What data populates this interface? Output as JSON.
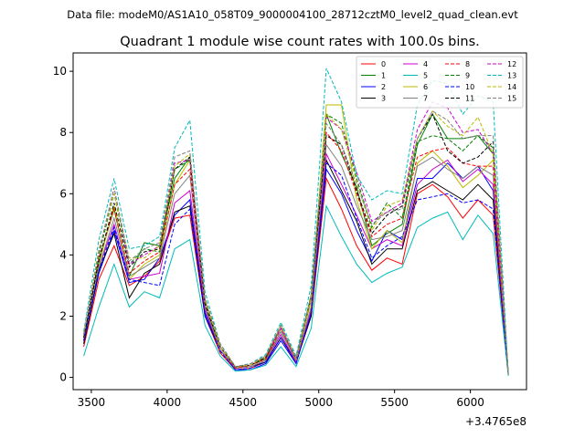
{
  "suptitle": "Data file: modeM0/AS1A10_058T09_9000004100_28712cztM0_level2_quad_clean.evt",
  "chart_data": {
    "type": "line",
    "title": "Quadrant 1 module wise count rates with 100.0s bins.",
    "xlabel": "",
    "ylabel": "",
    "x_offset_label": "+3.4765e8",
    "x_offset": 347650000,
    "xlim": [
      3380,
      6370
    ],
    "ylim": [
      -0.4,
      10.6
    ],
    "xticks": [
      3500,
      4000,
      4500,
      5000,
      5500,
      6000
    ],
    "yticks": [
      0,
      2,
      4,
      6,
      8,
      10
    ],
    "grid": false,
    "legend_position": "top-right",
    "x": [
      3450,
      3550,
      3650,
      3750,
      3850,
      3950,
      4050,
      4150,
      4250,
      4350,
      4450,
      4550,
      4650,
      4750,
      4850,
      4950,
      5050,
      5150,
      5250,
      5350,
      5450,
      5550,
      5650,
      5750,
      5850,
      5950,
      6050,
      6150,
      6250
    ],
    "series": [
      {
        "name": "0",
        "color": "#ff0000",
        "dash": "solid",
        "values": [
          1.0,
          3.2,
          4.3,
          3.0,
          3.3,
          3.8,
          5.2,
          5.3,
          2.0,
          0.8,
          0.25,
          0.3,
          0.5,
          1.3,
          0.5,
          2.0,
          6.5,
          5.5,
          4.3,
          3.5,
          3.9,
          3.7,
          6.0,
          6.3,
          5.9,
          5.2,
          5.8,
          5.3,
          0.1
        ]
      },
      {
        "name": "1",
        "color": "#008000",
        "dash": "solid",
        "values": [
          1.2,
          3.8,
          5.5,
          3.3,
          4.4,
          4.3,
          6.5,
          7.2,
          2.3,
          1.0,
          0.3,
          0.4,
          0.6,
          1.5,
          0.6,
          2.5,
          8.6,
          7.3,
          6.2,
          4.3,
          4.7,
          5.0,
          7.6,
          8.6,
          7.8,
          7.8,
          7.9,
          7.3,
          0.1
        ]
      },
      {
        "name": "2",
        "color": "#0000ff",
        "dash": "solid",
        "values": [
          1.1,
          3.4,
          4.8,
          3.1,
          3.2,
          3.9,
          5.3,
          5.8,
          2.1,
          0.9,
          0.25,
          0.25,
          0.45,
          1.2,
          0.45,
          2.1,
          6.8,
          6.0,
          4.8,
          3.8,
          4.8,
          4.5,
          6.5,
          6.5,
          7.0,
          6.5,
          6.9,
          6.1,
          0.1
        ]
      },
      {
        "name": "3",
        "color": "#000000",
        "dash": "solid",
        "values": [
          1.1,
          3.5,
          4.7,
          2.6,
          3.4,
          3.7,
          5.4,
          5.6,
          2.0,
          0.9,
          0.3,
          0.35,
          0.5,
          1.3,
          0.5,
          2.0,
          7.1,
          6.1,
          5.1,
          3.7,
          4.2,
          4.2,
          6.1,
          6.4,
          6.1,
          5.8,
          6.3,
          5.8,
          0.1
        ]
      },
      {
        "name": "4",
        "color": "#cc00cc",
        "dash": "solid",
        "values": [
          1.2,
          3.6,
          5.0,
          3.2,
          3.3,
          3.4,
          5.7,
          6.1,
          2.2,
          0.9,
          0.3,
          0.35,
          0.55,
          1.4,
          0.5,
          2.2,
          7.3,
          6.3,
          5.3,
          4.2,
          4.5,
          4.3,
          6.3,
          6.8,
          7.1,
          6.4,
          6.8,
          6.3,
          0.1
        ]
      },
      {
        "name": "5",
        "color": "#00bbbb",
        "dash": "solid",
        "values": [
          0.7,
          2.3,
          3.7,
          2.3,
          2.8,
          2.6,
          4.2,
          4.5,
          1.7,
          0.7,
          0.2,
          0.25,
          0.4,
          1.0,
          0.35,
          1.6,
          5.6,
          4.6,
          3.7,
          3.1,
          3.4,
          3.6,
          4.9,
          5.2,
          5.4,
          4.5,
          5.3,
          4.7,
          0.05
        ]
      },
      {
        "name": "6",
        "color": "#bbbb00",
        "dash": "solid",
        "values": [
          1.3,
          3.7,
          5.6,
          3.2,
          3.7,
          4.0,
          6.3,
          7.1,
          2.5,
          1.0,
          0.3,
          0.4,
          0.65,
          1.6,
          0.6,
          2.5,
          8.9,
          8.9,
          5.8,
          4.2,
          4.8,
          4.4,
          7.0,
          7.4,
          6.9,
          6.2,
          6.6,
          7.1,
          0.1
        ]
      },
      {
        "name": "7",
        "color": "#808080",
        "dash": "solid",
        "values": [
          1.2,
          3.6,
          5.2,
          3.3,
          3.6,
          3.9,
          6.0,
          6.6,
          2.3,
          0.9,
          0.3,
          0.35,
          0.55,
          1.5,
          0.55,
          2.3,
          7.6,
          6.9,
          5.6,
          4.5,
          4.6,
          4.8,
          6.9,
          7.2,
          6.8,
          6.5,
          6.9,
          6.6,
          0.1
        ]
      },
      {
        "name": "8",
        "color": "#ff0000",
        "dash": "dashed",
        "values": [
          1.3,
          3.9,
          5.5,
          3.4,
          3.8,
          4.1,
          6.3,
          6.8,
          2.4,
          1.0,
          0.3,
          0.4,
          0.6,
          1.6,
          0.6,
          2.6,
          8.0,
          7.4,
          6.0,
          4.6,
          5.0,
          5.2,
          7.2,
          7.4,
          7.5,
          7.0,
          6.9,
          6.9,
          0.1
        ]
      },
      {
        "name": "9",
        "color": "#008000",
        "dash": "dashed",
        "values": [
          1.4,
          4.0,
          6.0,
          3.7,
          4.2,
          4.1,
          6.8,
          7.1,
          2.5,
          1.0,
          0.35,
          0.4,
          0.65,
          1.7,
          0.6,
          2.7,
          8.6,
          8.3,
          6.5,
          4.9,
          5.7,
          5.2,
          7.7,
          7.9,
          7.8,
          7.4,
          7.9,
          7.5,
          0.1
        ]
      },
      {
        "name": "10",
        "color": "#0000ff",
        "dash": "dashed",
        "values": [
          1.2,
          3.5,
          4.9,
          3.2,
          3.1,
          3.0,
          5.0,
          5.5,
          2.0,
          0.85,
          0.25,
          0.3,
          0.5,
          1.3,
          0.45,
          2.1,
          7.0,
          6.6,
          5.2,
          3.9,
          4.3,
          4.6,
          5.8,
          5.9,
          6.0,
          5.7,
          5.8,
          5.5,
          0.1
        ]
      },
      {
        "name": "11",
        "color": "#000000",
        "dash": "dashed",
        "values": [
          1.3,
          3.8,
          5.7,
          3.6,
          4.1,
          4.2,
          6.8,
          7.2,
          2.4,
          1.0,
          0.35,
          0.4,
          0.65,
          1.7,
          0.6,
          2.6,
          7.9,
          7.6,
          6.1,
          4.7,
          5.3,
          5.6,
          7.8,
          8.6,
          7.4,
          7.0,
          7.2,
          7.7,
          0.1
        ]
      },
      {
        "name": "12",
        "color": "#cc00cc",
        "dash": "dashed",
        "values": [
          1.4,
          4.1,
          6.2,
          3.7,
          4.0,
          4.3,
          7.0,
          7.1,
          2.5,
          1.0,
          0.35,
          0.4,
          0.7,
          1.6,
          0.6,
          2.6,
          8.5,
          8.1,
          6.7,
          5.1,
          5.4,
          5.7,
          8.1,
          9.0,
          8.8,
          8.0,
          8.1,
          7.3,
          0.1
        ]
      },
      {
        "name": "13",
        "color": "#00bbbb",
        "dash": "dashed",
        "values": [
          1.5,
          4.5,
          6.5,
          4.2,
          4.3,
          4.6,
          7.5,
          8.4,
          2.8,
          1.1,
          0.35,
          0.45,
          0.75,
          1.8,
          0.7,
          3.0,
          10.1,
          9.0,
          6.6,
          5.8,
          6.1,
          6.0,
          8.9,
          9.7,
          9.6,
          8.6,
          9.2,
          9.0,
          0.1
        ]
      },
      {
        "name": "14",
        "color": "#bbbb00",
        "dash": "dashed",
        "values": [
          1.4,
          4.2,
          6.0,
          3.9,
          3.9,
          4.3,
          6.9,
          7.3,
          2.5,
          1.0,
          0.35,
          0.4,
          0.7,
          1.7,
          0.6,
          2.6,
          8.6,
          8.1,
          6.4,
          4.8,
          5.6,
          5.8,
          7.8,
          8.7,
          8.2,
          7.9,
          8.5,
          7.3,
          0.1
        ]
      },
      {
        "name": "15",
        "color": "#808080",
        "dash": "dashed",
        "values": [
          1.4,
          4.1,
          6.2,
          3.8,
          4.2,
          4.4,
          7.2,
          7.4,
          2.6,
          1.1,
          0.35,
          0.45,
          0.7,
          1.7,
          0.65,
          2.7,
          8.3,
          7.6,
          6.3,
          5.0,
          5.4,
          5.5,
          7.8,
          8.7,
          8.4,
          7.8,
          7.9,
          7.9,
          0.1
        ]
      }
    ]
  }
}
